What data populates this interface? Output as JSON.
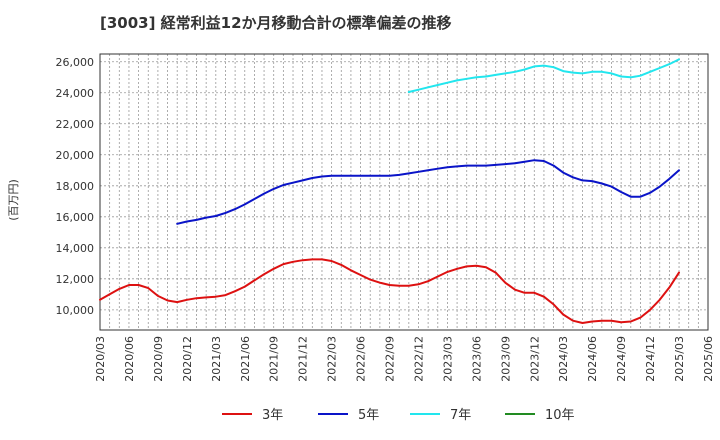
{
  "chart_data": {
    "type": "line",
    "title": "[3003]  経常利益12か月移動合計の標準偏差の推移",
    "ylabel": "(百万円)",
    "xlabel": "",
    "ylim": [
      8700,
      26500
    ],
    "yticks": [
      10000,
      12000,
      14000,
      16000,
      18000,
      20000,
      22000,
      24000,
      26000
    ],
    "ytick_labels": [
      "10,000",
      "12,000",
      "14,000",
      "16,000",
      "18,000",
      "20,000",
      "22,000",
      "24,000",
      "26,000"
    ],
    "xticks": [
      "2020/03",
      "2020/06",
      "2020/09",
      "2020/12",
      "2021/03",
      "2021/06",
      "2021/09",
      "2021/12",
      "2022/03",
      "2022/06",
      "2022/09",
      "2022/12",
      "2023/03",
      "2023/06",
      "2023/09",
      "2023/12",
      "2024/03",
      "2024/06",
      "2024/09",
      "2024/12",
      "2025/03",
      "2025/06"
    ],
    "grid": true,
    "legend_position": "bottom",
    "series": [
      {
        "name": "3年",
        "color": "#dd1111",
        "points": [
          [
            "2020/03",
            10650
          ],
          [
            "2020/04",
            11000
          ],
          [
            "2020/05",
            11350
          ],
          [
            "2020/06",
            11600
          ],
          [
            "2020/07",
            11600
          ],
          [
            "2020/08",
            11400
          ],
          [
            "2020/09",
            10900
          ],
          [
            "2020/10",
            10600
          ],
          [
            "2020/11",
            10500
          ],
          [
            "2020/12",
            10650
          ],
          [
            "2021/01",
            10750
          ],
          [
            "2021/02",
            10800
          ],
          [
            "2021/03",
            10850
          ],
          [
            "2021/04",
            10950
          ],
          [
            "2021/05",
            11200
          ],
          [
            "2021/06",
            11500
          ],
          [
            "2021/07",
            11900
          ],
          [
            "2021/08",
            12300
          ],
          [
            "2021/09",
            12650
          ],
          [
            "2021/10",
            12950
          ],
          [
            "2021/11",
            13100
          ],
          [
            "2021/12",
            13200
          ],
          [
            "2022/01",
            13250
          ],
          [
            "2022/02",
            13250
          ],
          [
            "2022/03",
            13150
          ],
          [
            "2022/04",
            12900
          ],
          [
            "2022/05",
            12550
          ],
          [
            "2022/06",
            12250
          ],
          [
            "2022/07",
            11950
          ],
          [
            "2022/08",
            11750
          ],
          [
            "2022/09",
            11600
          ],
          [
            "2022/10",
            11550
          ],
          [
            "2022/11",
            11550
          ],
          [
            "2022/12",
            11650
          ],
          [
            "2023/01",
            11850
          ],
          [
            "2023/02",
            12150
          ],
          [
            "2023/03",
            12450
          ],
          [
            "2023/04",
            12650
          ],
          [
            "2023/05",
            12800
          ],
          [
            "2023/06",
            12850
          ],
          [
            "2023/07",
            12750
          ],
          [
            "2023/08",
            12400
          ],
          [
            "2023/09",
            11750
          ],
          [
            "2023/10",
            11300
          ],
          [
            "2023/11",
            11100
          ],
          [
            "2023/12",
            11100
          ],
          [
            "2024/01",
            10850
          ],
          [
            "2024/02",
            10350
          ],
          [
            "2024/03",
            9700
          ],
          [
            "2024/04",
            9300
          ],
          [
            "2024/05",
            9150
          ],
          [
            "2024/06",
            9250
          ],
          [
            "2024/07",
            9300
          ],
          [
            "2024/08",
            9300
          ],
          [
            "2024/09",
            9200
          ],
          [
            "2024/10",
            9250
          ],
          [
            "2024/11",
            9500
          ],
          [
            "2024/12",
            10000
          ],
          [
            "2025/01",
            10650
          ],
          [
            "2025/02",
            11450
          ],
          [
            "2025/03",
            12400
          ]
        ]
      },
      {
        "name": "5年",
        "color": "#0a14c8",
        "points": [
          [
            "2020/11",
            15550
          ],
          [
            "2020/12",
            15700
          ],
          [
            "2021/01",
            15800
          ],
          [
            "2021/02",
            15950
          ],
          [
            "2021/03",
            16050
          ],
          [
            "2021/04",
            16250
          ],
          [
            "2021/05",
            16500
          ],
          [
            "2021/06",
            16800
          ],
          [
            "2021/07",
            17150
          ],
          [
            "2021/08",
            17500
          ],
          [
            "2021/09",
            17800
          ],
          [
            "2021/10",
            18050
          ],
          [
            "2021/11",
            18200
          ],
          [
            "2021/12",
            18350
          ],
          [
            "2022/01",
            18500
          ],
          [
            "2022/02",
            18600
          ],
          [
            "2022/03",
            18650
          ],
          [
            "2022/04",
            18650
          ],
          [
            "2022/05",
            18650
          ],
          [
            "2022/06",
            18650
          ],
          [
            "2022/07",
            18650
          ],
          [
            "2022/08",
            18650
          ],
          [
            "2022/09",
            18650
          ],
          [
            "2022/10",
            18700
          ],
          [
            "2022/11",
            18800
          ],
          [
            "2022/12",
            18900
          ],
          [
            "2023/01",
            19000
          ],
          [
            "2023/02",
            19100
          ],
          [
            "2023/03",
            19200
          ],
          [
            "2023/04",
            19250
          ],
          [
            "2023/05",
            19300
          ],
          [
            "2023/06",
            19300
          ],
          [
            "2023/07",
            19300
          ],
          [
            "2023/08",
            19350
          ],
          [
            "2023/09",
            19400
          ],
          [
            "2023/10",
            19450
          ],
          [
            "2023/11",
            19550
          ],
          [
            "2023/12",
            19650
          ],
          [
            "2024/01",
            19600
          ],
          [
            "2024/02",
            19300
          ],
          [
            "2024/03",
            18850
          ],
          [
            "2024/04",
            18550
          ],
          [
            "2024/05",
            18350
          ],
          [
            "2024/06",
            18300
          ],
          [
            "2024/07",
            18150
          ],
          [
            "2024/08",
            17950
          ],
          [
            "2024/09",
            17600
          ],
          [
            "2024/10",
            17300
          ],
          [
            "2024/11",
            17300
          ],
          [
            "2024/12",
            17550
          ],
          [
            "2025/01",
            17950
          ],
          [
            "2025/02",
            18450
          ],
          [
            "2025/03",
            19000
          ]
        ]
      },
      {
        "name": "7年",
        "color": "#22e6ee",
        "points": [
          [
            "2022/11",
            24050
          ],
          [
            "2022/12",
            24200
          ],
          [
            "2023/01",
            24350
          ],
          [
            "2023/02",
            24500
          ],
          [
            "2023/03",
            24650
          ],
          [
            "2023/04",
            24800
          ],
          [
            "2023/05",
            24900
          ],
          [
            "2023/06",
            25000
          ],
          [
            "2023/07",
            25050
          ],
          [
            "2023/08",
            25150
          ],
          [
            "2023/09",
            25250
          ],
          [
            "2023/10",
            25350
          ],
          [
            "2023/11",
            25500
          ],
          [
            "2023/12",
            25700
          ],
          [
            "2024/01",
            25750
          ],
          [
            "2024/02",
            25650
          ],
          [
            "2024/03",
            25400
          ],
          [
            "2024/04",
            25300
          ],
          [
            "2024/05",
            25250
          ],
          [
            "2024/06",
            25350
          ],
          [
            "2024/07",
            25350
          ],
          [
            "2024/08",
            25250
          ],
          [
            "2024/09",
            25050
          ],
          [
            "2024/10",
            25000
          ],
          [
            "2024/11",
            25100
          ],
          [
            "2024/12",
            25350
          ],
          [
            "2025/01",
            25600
          ],
          [
            "2025/02",
            25850
          ],
          [
            "2025/03",
            26150
          ]
        ]
      },
      {
        "name": "10年",
        "color": "#228b22",
        "points": []
      }
    ]
  }
}
